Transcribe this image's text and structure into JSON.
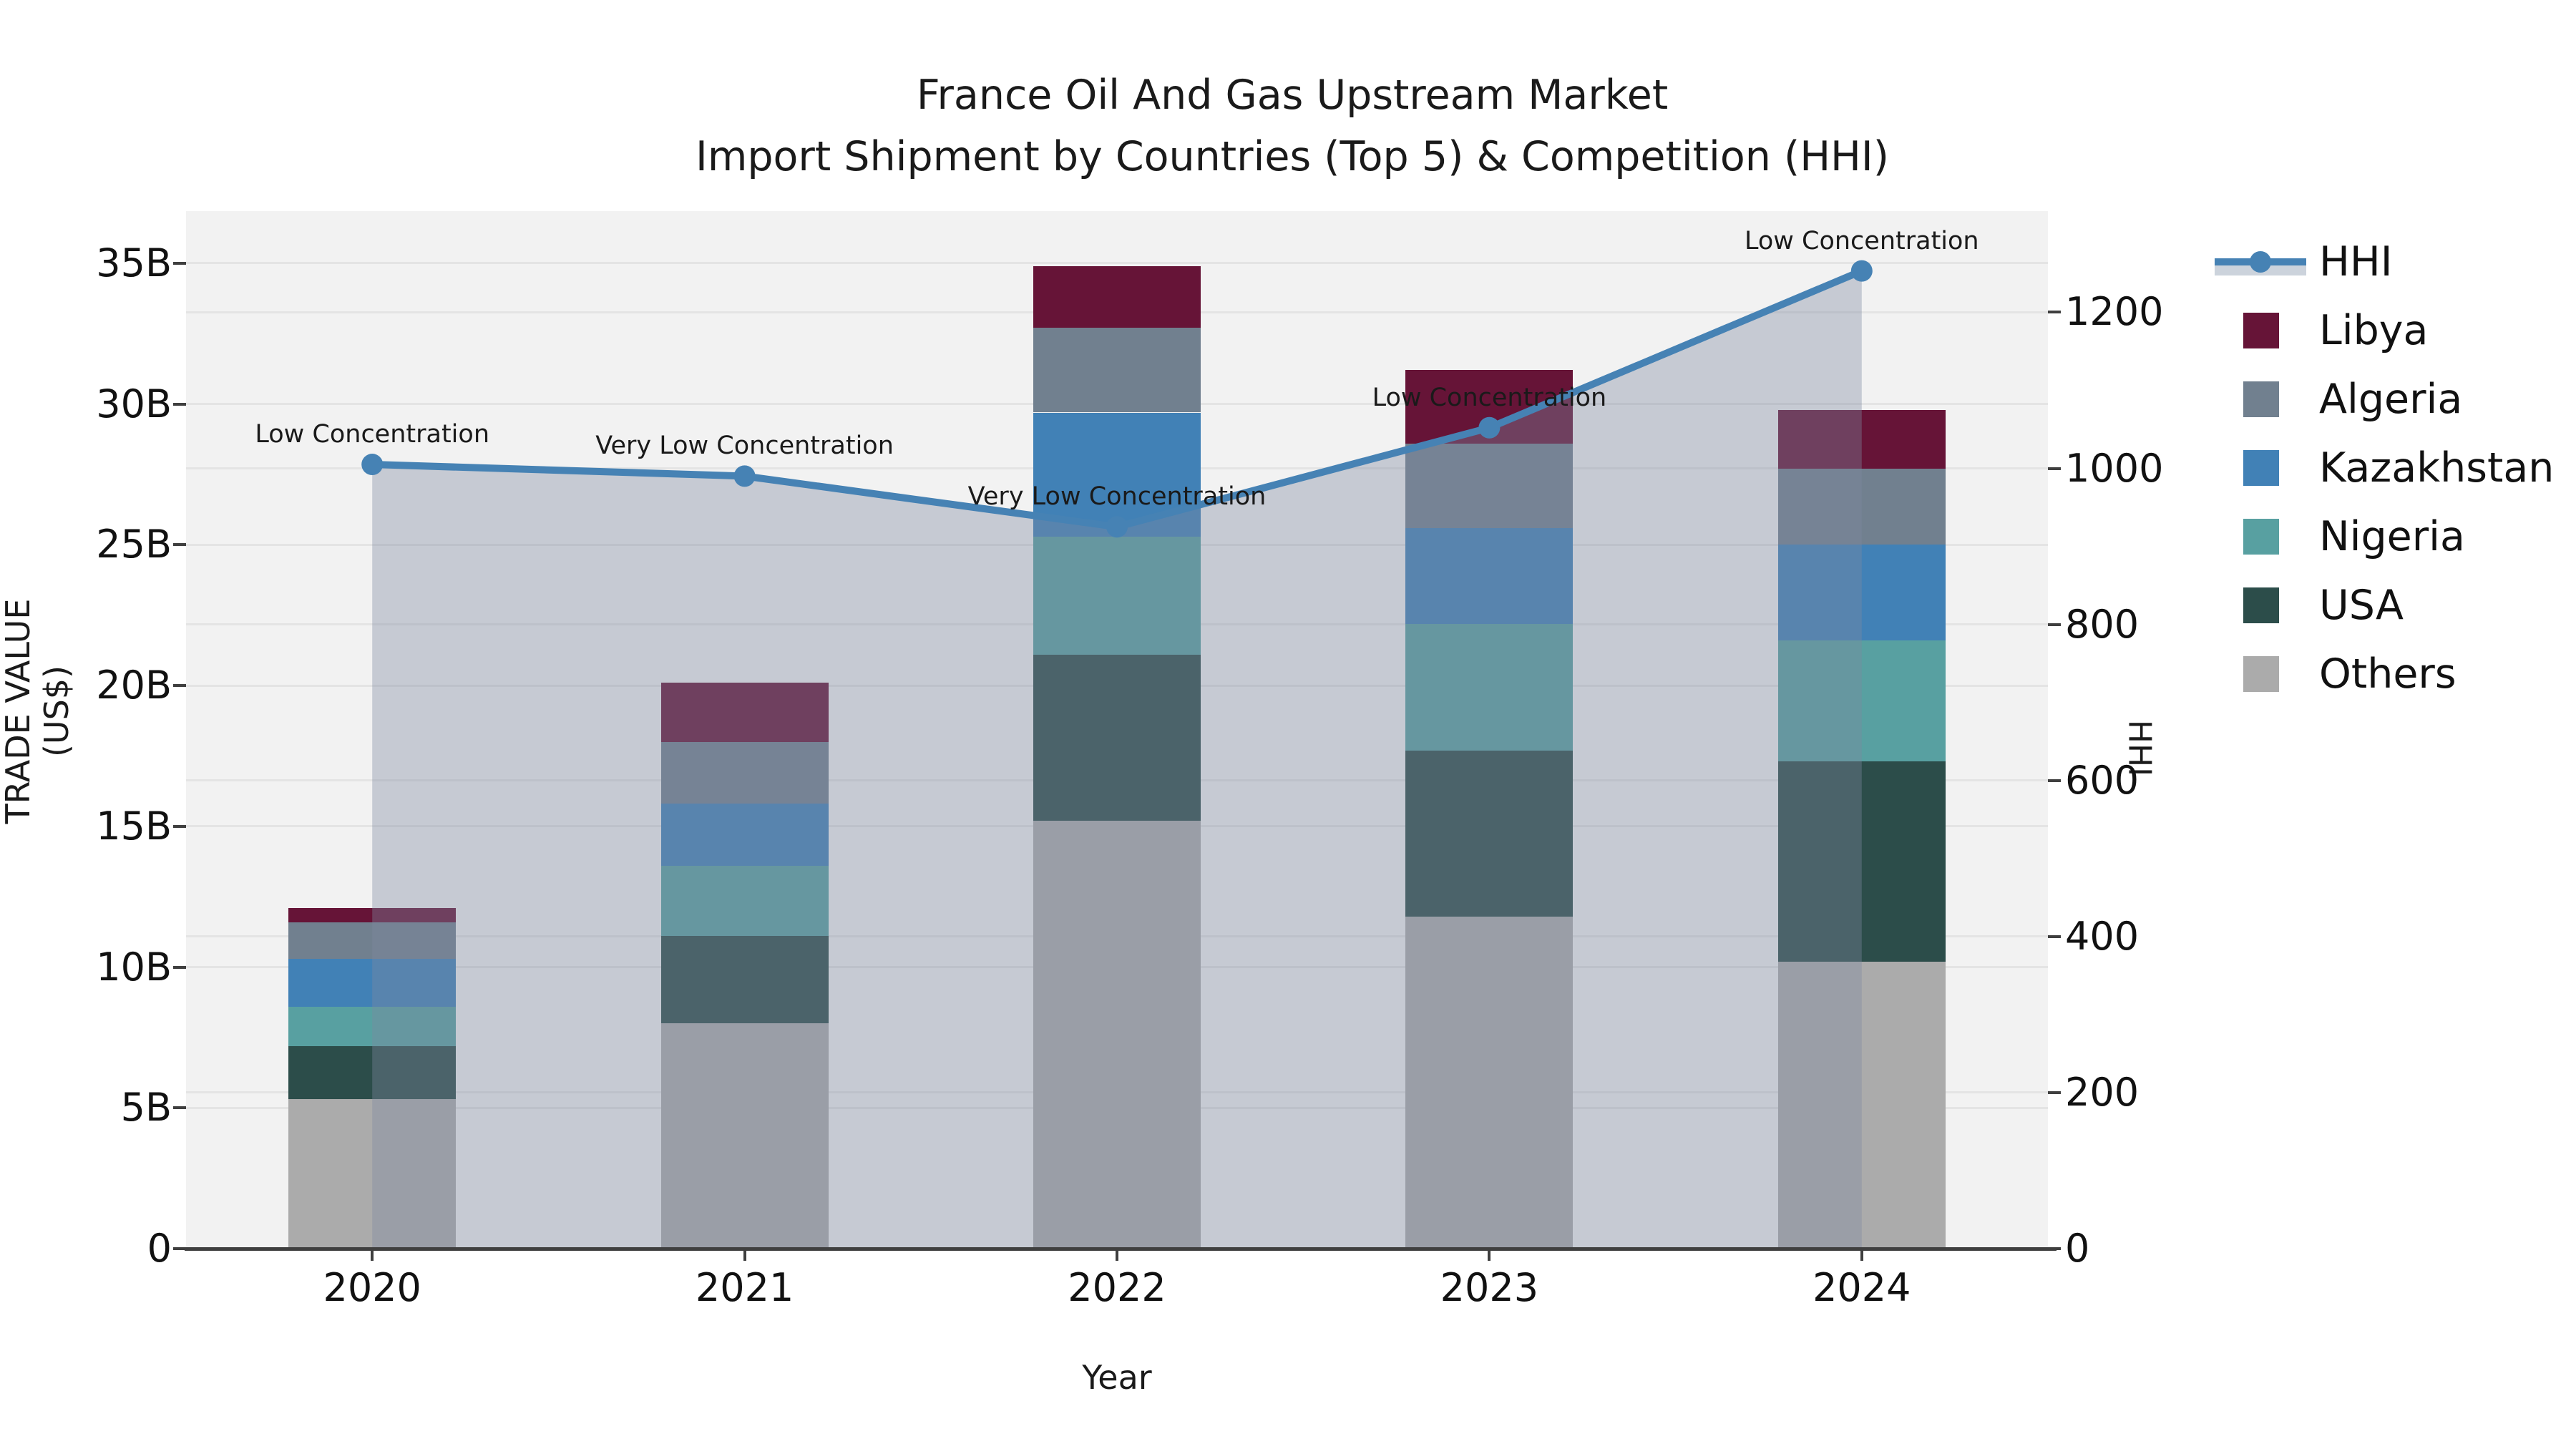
{
  "title": {
    "line1": "France Oil And Gas Upstream Market",
    "line2": "Import Shipment by Countries (Top 5) & Competition (HHI)"
  },
  "chart_data": {
    "type": "bar",
    "subtype": "stacked-bar-with-line-overlay",
    "categories": [
      "2020",
      "2021",
      "2022",
      "2023",
      "2024"
    ],
    "series": [
      {
        "name": "Others",
        "color": "#ababab",
        "values": [
          5.3,
          8.0,
          15.2,
          11.8,
          10.2
        ]
      },
      {
        "name": "USA",
        "color": "#2c4d4a",
        "values": [
          1.9,
          3.1,
          5.9,
          5.9,
          7.1
        ]
      },
      {
        "name": "Nigeria",
        "color": "#58a0a1",
        "values": [
          1.4,
          2.5,
          4.2,
          4.5,
          4.3
        ]
      },
      {
        "name": "Kazakhstan",
        "color": "#4181b6",
        "values": [
          1.7,
          2.2,
          4.4,
          3.4,
          3.4
        ]
      },
      {
        "name": "Algeria",
        "color": "#71808f",
        "values": [
          1.3,
          2.2,
          3.0,
          3.0,
          2.7
        ]
      },
      {
        "name": "Libya",
        "color": "#661437",
        "values": [
          0.5,
          2.1,
          2.2,
          2.6,
          2.1
        ]
      }
    ],
    "values_unit": "billion US$",
    "bar_totals": [
      12.1,
      20.1,
      34.9,
      31.2,
      29.8
    ],
    "line_overlay": {
      "name": "HHI",
      "color": "#4682b4",
      "area_color": "rgba(125,137,160,0.38)",
      "values": [
        1005,
        990,
        925,
        1052,
        1253
      ]
    },
    "annotations": [
      {
        "year": "2020",
        "text": "Low Concentration"
      },
      {
        "year": "2021",
        "text": "Very Low Concentration"
      },
      {
        "year": "2022",
        "text": "Very Low Concentration"
      },
      {
        "year": "2023",
        "text": "Low Concentration"
      },
      {
        "year": "2024",
        "text": "Low Concentration"
      }
    ],
    "axes": {
      "x_label": "Year",
      "y_left": {
        "label": "TRADE VALUE (US$)",
        "ticks": [
          {
            "value": 0,
            "label": "0"
          },
          {
            "value": 5,
            "label": "5B"
          },
          {
            "value": 10,
            "label": "10B"
          },
          {
            "value": 15,
            "label": "15B"
          },
          {
            "value": 20,
            "label": "20B"
          },
          {
            "value": 25,
            "label": "25B"
          },
          {
            "value": 30,
            "label": "30B"
          },
          {
            "value": 35,
            "label": "35B"
          }
        ]
      },
      "y_right": {
        "label": "HHI",
        "ticks": [
          0,
          200,
          400,
          600,
          800,
          1000,
          1200
        ]
      },
      "grid": "on",
      "legend_position": "right"
    },
    "legend": {
      "items": [
        {
          "label": "HHI",
          "marker": "line",
          "color": "#4682b4"
        },
        {
          "label": "Libya",
          "marker": "square",
          "color": "#661437"
        },
        {
          "label": "Algeria",
          "marker": "square",
          "color": "#71808f"
        },
        {
          "label": "Kazakhstan",
          "marker": "square",
          "color": "#4181b6"
        },
        {
          "label": "Nigeria",
          "marker": "square",
          "color": "#58a0a1"
        },
        {
          "label": "USA",
          "marker": "square",
          "color": "#2c4d4a"
        },
        {
          "label": "Others",
          "marker": "square",
          "color": "#ababab"
        }
      ]
    }
  }
}
